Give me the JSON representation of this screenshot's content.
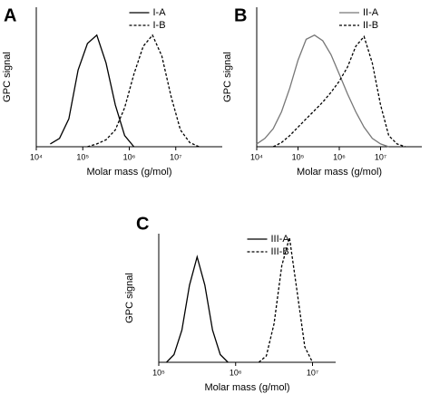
{
  "chart_data": [
    {
      "type": "line",
      "title": "A",
      "xlabel": "Molar mass (g/mol)",
      "ylabel": "GPC signal",
      "xscale": "log",
      "xlim": [
        10000,
        100000000
      ],
      "ylim": [
        0,
        1
      ],
      "legend": "upper right",
      "xticks": [
        {
          "value": 10000,
          "label": "10⁴"
        },
        {
          "value": 100000,
          "label": "10⁵"
        },
        {
          "value": 1000000,
          "label": "10⁶"
        },
        {
          "value": 10000000,
          "label": "10⁷"
        }
      ],
      "series": [
        {
          "name": "I-A",
          "color": "#000000",
          "linestyle": "solid",
          "x": [
            20000,
            31600,
            50100,
            79400,
            126000,
            200000,
            316000,
            501000,
            794000,
            1260000
          ],
          "values": [
            0.02,
            0.06,
            0.2,
            0.55,
            0.74,
            0.8,
            0.6,
            0.3,
            0.08,
            0.0
          ]
        },
        {
          "name": "I-B",
          "color": "#000000",
          "linestyle": "dashed",
          "x": [
            126000,
            200000,
            316000,
            501000,
            794000,
            1260000,
            2000000,
            3160000,
            5010000,
            7940000,
            12600000,
            20000000,
            31600000
          ],
          "values": [
            0.0,
            0.02,
            0.05,
            0.12,
            0.28,
            0.52,
            0.72,
            0.8,
            0.65,
            0.36,
            0.12,
            0.03,
            0.0
          ]
        }
      ]
    },
    {
      "type": "line",
      "title": "B",
      "xlabel": "Molar mass (g/mol)",
      "ylabel": "GPC signal",
      "xscale": "log",
      "xlim": [
        10000,
        100000000
      ],
      "ylim": [
        0,
        1
      ],
      "legend": "upper right",
      "xticks": [
        {
          "value": 10000,
          "label": "10⁴"
        },
        {
          "value": 100000,
          "label": "10⁵"
        },
        {
          "value": 1000000,
          "label": "10⁶"
        },
        {
          "value": 10000000,
          "label": "10⁷"
        }
      ],
      "series": [
        {
          "name": "II-A",
          "color": "#777777",
          "linestyle": "solid",
          "x": [
            10000,
            15800,
            25100,
            39800,
            63100,
            100000,
            158000,
            251000,
            398000,
            631000,
            1000000,
            1580000,
            2510000,
            3980000,
            6310000,
            10000000,
            15800000
          ],
          "values": [
            0.02,
            0.06,
            0.13,
            0.25,
            0.42,
            0.62,
            0.77,
            0.8,
            0.76,
            0.66,
            0.52,
            0.38,
            0.25,
            0.14,
            0.06,
            0.02,
            0.0
          ]
        },
        {
          "name": "II-B",
          "color": "#000000",
          "linestyle": "dashed",
          "x": [
            25100,
            39800,
            63100,
            100000,
            158000,
            251000,
            398000,
            631000,
            1000000,
            1580000,
            2510000,
            3980000,
            6310000,
            10000000,
            15800000,
            25100000,
            39800000
          ],
          "values": [
            0.0,
            0.03,
            0.08,
            0.14,
            0.2,
            0.26,
            0.32,
            0.39,
            0.47,
            0.57,
            0.72,
            0.79,
            0.6,
            0.3,
            0.08,
            0.02,
            0.0
          ]
        }
      ]
    },
    {
      "type": "line",
      "title": "C",
      "xlabel": "Molar mass (g/mol)",
      "ylabel": "GPC signal",
      "xscale": "log",
      "xlim": [
        100000,
        20000000
      ],
      "ylim": [
        0,
        1
      ],
      "legend": "upper right",
      "xticks": [
        {
          "value": 100000,
          "label": "10⁵"
        },
        {
          "value": 1000000,
          "label": "10⁶"
        },
        {
          "value": 10000000,
          "label": "10⁷"
        }
      ],
      "series": [
        {
          "name": "III-A",
          "color": "#000000",
          "linestyle": "solid",
          "x": [
            126000,
            158000,
            200000,
            251000,
            316000,
            398000,
            501000,
            631000,
            794000
          ],
          "values": [
            0.0,
            0.06,
            0.25,
            0.6,
            0.82,
            0.6,
            0.25,
            0.06,
            0.0
          ]
        },
        {
          "name": "III-B",
          "color": "#000000",
          "linestyle": "dashed",
          "x": [
            2000000,
            2510000,
            3160000,
            3980000,
            5010000,
            6310000,
            7940000,
            10000000
          ],
          "values": [
            0.0,
            0.05,
            0.3,
            0.75,
            0.97,
            0.55,
            0.12,
            0.0
          ]
        }
      ]
    }
  ]
}
